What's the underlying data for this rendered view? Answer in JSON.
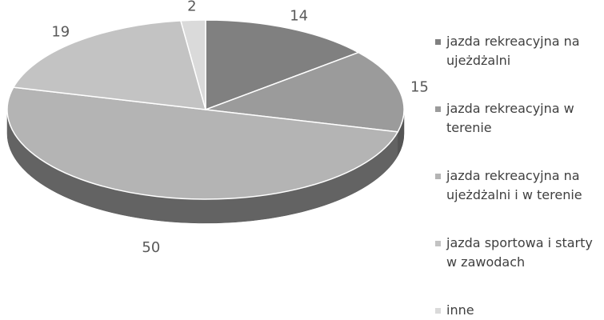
{
  "chart_data": {
    "type": "pie",
    "style": "3d",
    "categories": [
      "jazda rekreacyjna na ujeżdżalni",
      "jazda rekreacyjna w terenie",
      "jazda rekreacyjna na ujeżdżalni i w terenie",
      "jazda sportowa i starty w zawodach",
      "inne"
    ],
    "values": [
      14,
      15,
      50,
      19,
      2
    ],
    "value_labels": [
      "14",
      "15",
      "50",
      "19",
      "2"
    ],
    "colors": [
      "#808080",
      "#9b9b9b",
      "#b4b4b4",
      "#c3c3c3",
      "#dadada"
    ],
    "legend_placement": "right"
  }
}
